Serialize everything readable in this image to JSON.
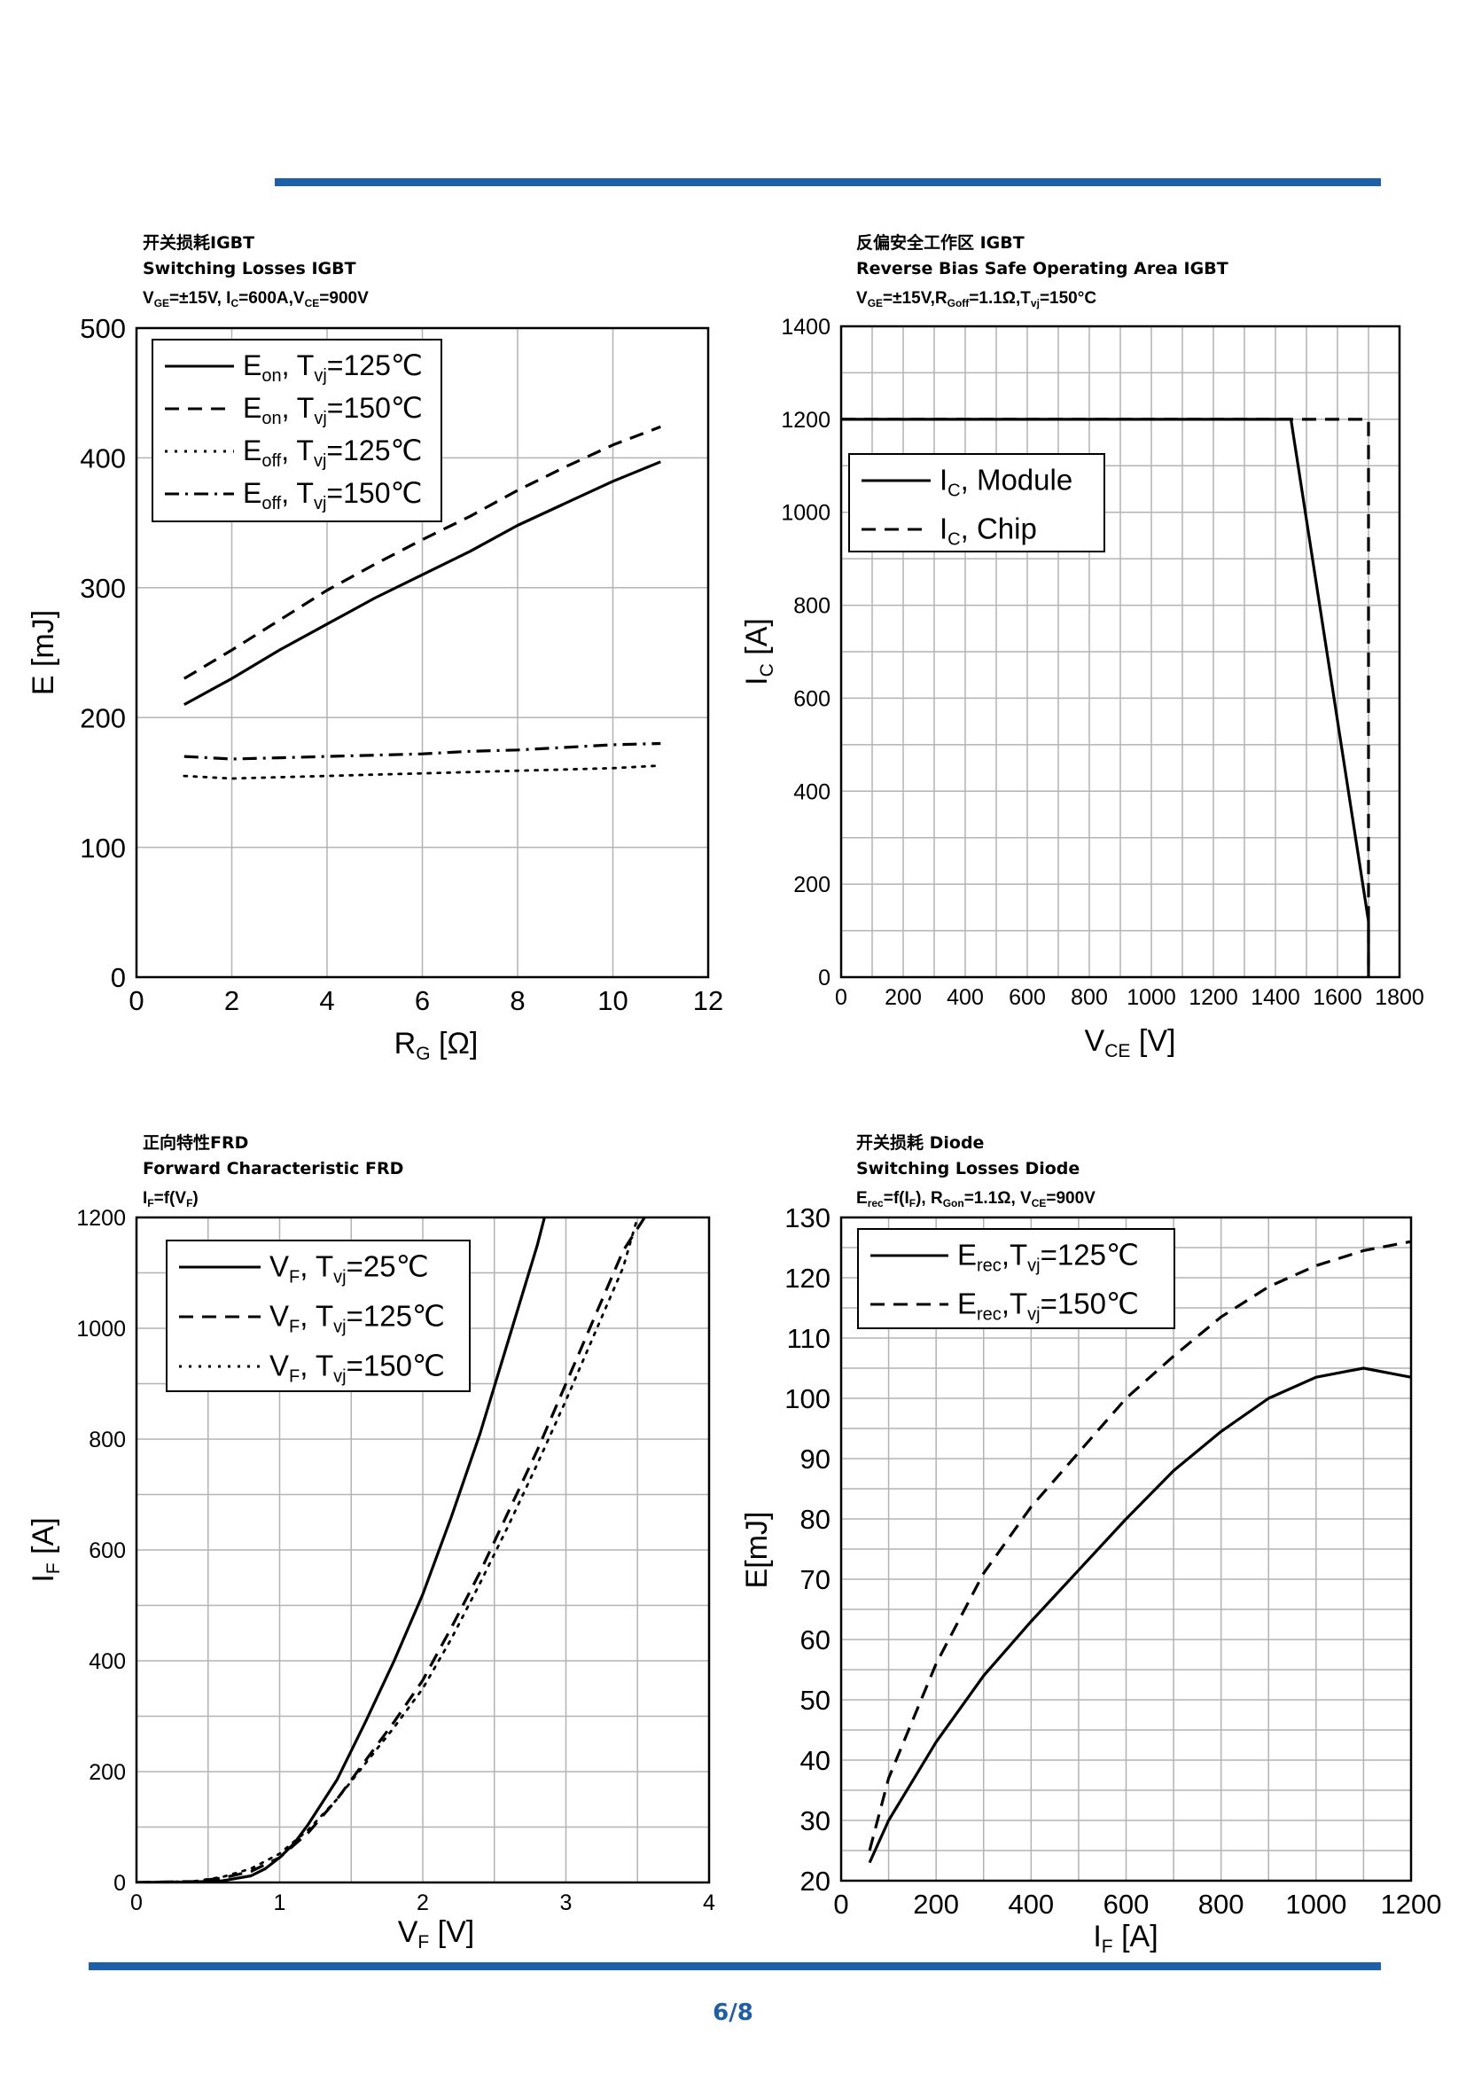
{
  "page": {
    "number": "6/8",
    "accent_color": "#1f5fa8"
  },
  "chart_data": [
    {
      "id": "c1",
      "type": "line",
      "title_lines": [
        "开关损耗IGBT",
        "Switching Losses IGBT"
      ],
      "cond": {
        "main": "V",
        "sub": "GE",
        "rest": "=±15V, I",
        "sub2": "C",
        "rest2": "=600A,V",
        "sub3": "CE",
        "rest3": "=900V"
      },
      "xlabel": {
        "main": "R",
        "sub": "G",
        "rest": " [Ω]"
      },
      "ylabel": {
        "main": "E [mJ]",
        "sub": "",
        "rest": ""
      },
      "xlim": [
        0,
        12
      ],
      "ylim": [
        0,
        500
      ],
      "xticks": [
        0,
        2,
        4,
        6,
        8,
        10,
        12
      ],
      "xtick_labels": [
        "0",
        "2",
        "4",
        "6",
        "8",
        "10",
        "12"
      ],
      "yticks": [
        0,
        100,
        200,
        300,
        400,
        500
      ],
      "ytick_labels": [
        "0",
        "100",
        "200",
        "300",
        "400",
        "500"
      ],
      "xgrid": [
        0,
        2,
        4,
        6,
        8,
        10,
        12
      ],
      "ygrid": [
        0,
        100,
        200,
        300,
        400,
        500
      ],
      "legend_loc": "top-left",
      "series": [
        {
          "name": "Eon, Tvj=125℃",
          "lbl": {
            "main": "E",
            "sub": "on",
            "rest": ", T",
            "sub2": "vj",
            "rest2": "=125℃"
          },
          "style": "solid",
          "x": [
            1,
            2,
            3,
            4,
            5,
            6,
            7,
            8,
            9,
            10,
            11
          ],
          "y": [
            210,
            230,
            252,
            272,
            292,
            310,
            328,
            348,
            365,
            382,
            397
          ]
        },
        {
          "name": "Eon, Tvj=150℃",
          "lbl": {
            "main": "E",
            "sub": "on",
            "rest": ", T",
            "sub2": "vj",
            "rest2": "=150℃"
          },
          "style": "dashed",
          "x": [
            1,
            2,
            3,
            4,
            5,
            6,
            7,
            8,
            9,
            10,
            11
          ],
          "y": [
            230,
            252,
            275,
            298,
            318,
            337,
            355,
            375,
            393,
            410,
            424
          ]
        },
        {
          "name": "Eoff, Tvj=125℃",
          "lbl": {
            "main": "E",
            "sub": "off",
            "rest": ", T",
            "sub2": "vj",
            "rest2": "=125℃"
          },
          "style": "dotted",
          "x": [
            1,
            2,
            3,
            4,
            5,
            6,
            7,
            8,
            9,
            10,
            11
          ],
          "y": [
            155,
            153,
            154,
            155,
            156,
            157,
            158,
            159,
            160,
            161,
            163
          ]
        },
        {
          "name": "Eoff, Tvj=150℃",
          "lbl": {
            "main": "E",
            "sub": "off",
            "rest": ", T",
            "sub2": "vj",
            "rest2": "=150℃"
          },
          "style": "dashdot",
          "x": [
            1,
            2,
            3,
            4,
            5,
            6,
            7,
            8,
            9,
            10,
            11
          ],
          "y": [
            170,
            168,
            169,
            170,
            171,
            172,
            174,
            175,
            177,
            179,
            180
          ]
        }
      ]
    },
    {
      "id": "c2",
      "type": "line",
      "title_lines": [
        "反偏安全工作区 IGBT",
        " Reverse Bias Safe Operating Area IGBT"
      ],
      "cond": {
        "main": "V",
        "sub": "GE",
        "rest": "=±15V,R",
        "sub2": "Goff",
        "rest2": "=1.1Ω,T",
        "sub3": "vj",
        "rest3": "=150°C"
      },
      "xlabel": {
        "main": "V",
        "sub": "CE",
        "rest": " [V]"
      },
      "ylabel": {
        "main": "I",
        "sub": "C",
        "rest": " [A]"
      },
      "xlim": [
        0,
        1800
      ],
      "ylim": [
        0,
        1400
      ],
      "xticks": [
        0,
        200,
        400,
        600,
        800,
        1000,
        1200,
        1400,
        1600,
        1800
      ],
      "xtick_labels": [
        "0",
        "200",
        "400",
        "600",
        "800",
        "1000",
        "1200",
        "1400",
        "1600",
        "1800"
      ],
      "yticks": [
        0,
        200,
        400,
        600,
        800,
        1000,
        1200,
        1400
      ],
      "ytick_labels": [
        "0",
        "200",
        "400",
        "600",
        "800",
        "1000",
        "1200",
        "1400"
      ],
      "xgrid": [
        0,
        100,
        200,
        300,
        400,
        500,
        600,
        700,
        800,
        900,
        1000,
        1100,
        1200,
        1300,
        1400,
        1500,
        1600,
        1700,
        1800
      ],
      "ygrid": [
        0,
        100,
        200,
        300,
        400,
        500,
        600,
        700,
        800,
        900,
        1000,
        1100,
        1200,
        1300,
        1400
      ],
      "legend_loc": "upper-left",
      "series": [
        {
          "name": "IC, Module",
          "lbl": {
            "main": "I",
            "sub": "C",
            "rest": ", Module"
          },
          "style": "solid",
          "x": [
            0,
            1450,
            1700,
            1700
          ],
          "y": [
            1200,
            1200,
            120,
            0
          ]
        },
        {
          "name": "IC, Chip",
          "lbl": {
            "main": "I",
            "sub": "C",
            "rest": ", Chip"
          },
          "style": "dashed",
          "x": [
            0,
            1700,
            1700
          ],
          "y": [
            1200,
            1200,
            0
          ]
        }
      ]
    },
    {
      "id": "c3",
      "type": "line",
      "title_lines": [
        "正向特性FRD",
        " Forward Characteristic FRD"
      ],
      "cond": {
        "main": "I",
        "sub": "F",
        "rest": "=f(V",
        "sub2": "F",
        "rest2": ")"
      },
      "xlabel": {
        "main": "V",
        "sub": "F",
        "rest": " [V]"
      },
      "ylabel": {
        "main": "I",
        "sub": "F",
        "rest": " [A]"
      },
      "xlim": [
        0,
        4
      ],
      "ylim": [
        0,
        1200
      ],
      "xticks": [
        0,
        1,
        2,
        3,
        4
      ],
      "xtick_labels": [
        "0",
        "1",
        "2",
        "3",
        "4"
      ],
      "yticks": [
        0,
        200,
        400,
        600,
        800,
        1000,
        1200
      ],
      "ytick_labels": [
        "0",
        "200",
        "400",
        "600",
        "800",
        "1000",
        "1200"
      ],
      "xgrid": [
        0,
        0.5,
        1,
        1.5,
        2,
        2.5,
        3,
        3.5,
        4
      ],
      "ygrid": [
        0,
        100,
        200,
        300,
        400,
        500,
        600,
        700,
        800,
        900,
        1000,
        1100,
        1200
      ],
      "legend_loc": "top-left",
      "series": [
        {
          "name": "VF, Tvj=25℃",
          "lbl": {
            "main": "V",
            "sub": "F",
            "rest": ", T",
            "sub2": "vj",
            "rest2": "=25℃"
          },
          "style": "solid",
          "x": [
            0,
            0.4,
            0.6,
            0.8,
            0.9,
            1.0,
            1.1,
            1.2,
            1.4,
            1.6,
            1.8,
            2.0,
            2.2,
            2.4,
            2.6,
            2.8,
            2.85
          ],
          "y": [
            0,
            1,
            3,
            12,
            25,
            45,
            70,
            105,
            185,
            290,
            400,
            520,
            660,
            810,
            980,
            1150,
            1200
          ]
        },
        {
          "name": "VF, Tvj=125℃",
          "lbl": {
            "main": "V",
            "sub": "F",
            "rest": ", T",
            "sub2": "vj",
            "rest2": "=125℃"
          },
          "style": "dashed",
          "x": [
            0,
            0.4,
            0.6,
            0.8,
            1.0,
            1.2,
            1.4,
            1.6,
            1.8,
            2.0,
            2.2,
            2.4,
            2.6,
            2.8,
            3.0,
            3.2,
            3.4,
            3.55
          ],
          "y": [
            0,
            2,
            8,
            20,
            45,
            90,
            150,
            220,
            290,
            365,
            460,
            560,
            670,
            780,
            900,
            1020,
            1140,
            1200
          ]
        },
        {
          "name": "VF, Tvj=150℃",
          "lbl": {
            "main": "V",
            "sub": "F",
            "rest": ", T",
            "sub2": "vj",
            "rest2": "=150℃"
          },
          "style": "dotted",
          "x": [
            0,
            0.4,
            0.6,
            0.8,
            1.0,
            1.2,
            1.4,
            1.6,
            1.8,
            2.0,
            2.2,
            2.4,
            2.6,
            2.8,
            3.0,
            3.2,
            3.4,
            3.5
          ],
          "y": [
            0,
            2,
            10,
            25,
            52,
            95,
            150,
            215,
            280,
            350,
            440,
            540,
            645,
            755,
            870,
            990,
            1110,
            1200
          ]
        }
      ]
    },
    {
      "id": "c4",
      "type": "line",
      "title_lines": [
        "开关损耗 Diode",
        "Switching Losses Diode"
      ],
      "cond": {
        "main": "E",
        "sub": "rec",
        "rest": "=f(I",
        "sub2": "F",
        "rest2": "), R",
        "sub3": "Gon",
        "rest3": "=1.1Ω, V",
        "sub4": "CE",
        "rest4": "=900V"
      },
      "xlabel": {
        "main": "I",
        "sub": "F",
        "rest": " [A]"
      },
      "ylabel": {
        "main": "E[mJ]",
        "sub": "",
        "rest": ""
      },
      "xlim": [
        0,
        1200
      ],
      "ylim": [
        20,
        130
      ],
      "xticks": [
        0,
        200,
        400,
        600,
        800,
        1000,
        1200
      ],
      "xtick_labels": [
        "0",
        "200",
        "400",
        "600",
        "800",
        "1000",
        "1200"
      ],
      "yticks": [
        20,
        30,
        40,
        50,
        60,
        70,
        80,
        90,
        100,
        110,
        120,
        130
      ],
      "ytick_labels": [
        "20",
        "30",
        "40",
        "50",
        "60",
        "70",
        "80",
        "90",
        "100",
        "110",
        "120",
        "130"
      ],
      "xgrid": [
        0,
        100,
        200,
        300,
        400,
        500,
        600,
        700,
        800,
        900,
        1000,
        1100,
        1200
      ],
      "ygrid": [
        20,
        25,
        30,
        35,
        40,
        45,
        50,
        55,
        60,
        65,
        70,
        75,
        80,
        85,
        90,
        95,
        100,
        105,
        110,
        115,
        120,
        125,
        130
      ],
      "legend_loc": "top-left",
      "series": [
        {
          "name": "Erec,Tvj=125℃",
          "lbl": {
            "main": "E",
            "sub": "rec",
            "rest": ",T",
            "sub2": "vj",
            "rest2": "=125℃"
          },
          "style": "solid",
          "x": [
            60,
            100,
            200,
            300,
            400,
            500,
            600,
            700,
            800,
            900,
            1000,
            1100,
            1200
          ],
          "y": [
            23,
            30,
            43,
            54,
            63,
            71.5,
            80,
            88,
            94.5,
            100,
            103.5,
            105,
            103.5
          ]
        },
        {
          "name": "Erec,Tvj=150℃",
          "lbl": {
            "main": "E",
            "sub": "rec",
            "rest": ",T",
            "sub2": "vj",
            "rest2": "=150℃"
          },
          "style": "dashed",
          "x": [
            60,
            100,
            200,
            300,
            400,
            500,
            600,
            700,
            800,
            900,
            1000,
            1100,
            1200
          ],
          "y": [
            25,
            37,
            56,
            71,
            82,
            91,
            100,
            107,
            113.5,
            118.5,
            122,
            124.5,
            126
          ]
        }
      ]
    }
  ]
}
